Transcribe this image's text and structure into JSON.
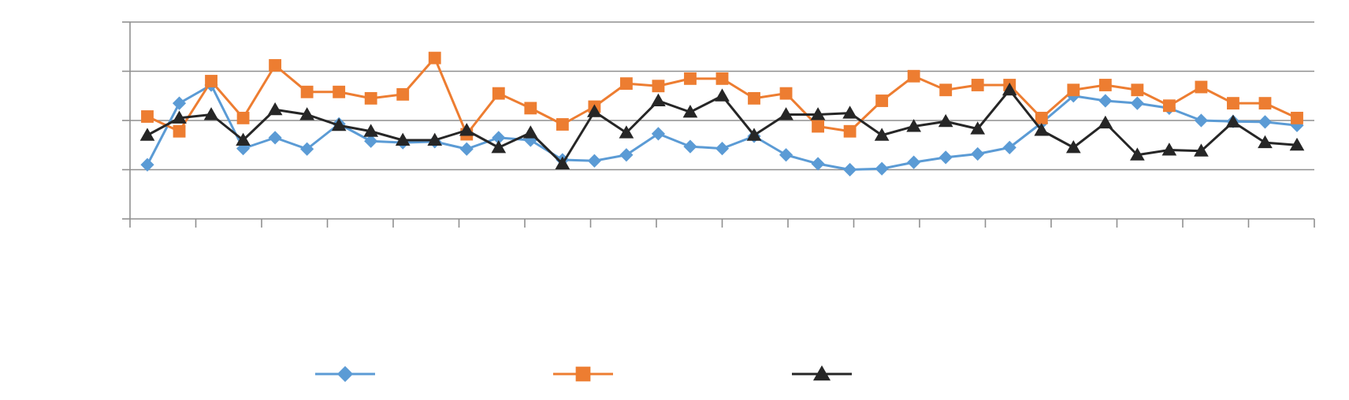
{
  "chart_data": {
    "type": "line",
    "title": "",
    "xlabel": "",
    "ylabel": "",
    "ylim": [
      0,
      4
    ],
    "grid": true,
    "legend": "bottom",
    "x": [
      1,
      2,
      3,
      4,
      5,
      6,
      7,
      8,
      9,
      10,
      11,
      12,
      13,
      14,
      15,
      16,
      17,
      18,
      19,
      20,
      21,
      22,
      23,
      24,
      25,
      26,
      27,
      28,
      29,
      30,
      31,
      32,
      33,
      34,
      35,
      36,
      37
    ],
    "series": [
      {
        "color": "#5B9BD5",
        "marker": "diamond",
        "values": [
          1.1,
          2.35,
          2.72,
          1.43,
          1.65,
          1.42,
          1.93,
          1.58,
          1.55,
          1.57,
          1.42,
          1.65,
          1.6,
          1.2,
          1.18,
          1.3,
          1.73,
          1.47,
          1.43,
          1.68,
          1.3,
          1.12,
          1.0,
          1.02,
          1.15,
          1.25,
          1.32,
          1.45,
          1.95,
          2.5,
          2.4,
          2.35,
          2.25,
          2.0,
          1.98,
          1.97,
          1.9
        ]
      },
      {
        "color": "#ED7D31",
        "marker": "square",
        "values": [
          2.08,
          1.78,
          2.8,
          2.05,
          3.12,
          2.58,
          2.58,
          2.45,
          2.53,
          3.27,
          1.72,
          2.55,
          2.25,
          1.92,
          2.28,
          2.75,
          2.7,
          2.85,
          2.85,
          2.45,
          2.55,
          1.88,
          1.78,
          2.4,
          2.9,
          2.62,
          2.72,
          2.72,
          2.05,
          2.62,
          2.72,
          2.62,
          2.3,
          2.68,
          2.35,
          2.35,
          2.05
        ]
      },
      {
        "color": "#262626",
        "marker": "triangle",
        "values": [
          1.7,
          2.05,
          2.12,
          1.6,
          2.22,
          2.12,
          1.9,
          1.78,
          1.6,
          1.6,
          1.8,
          1.45,
          1.75,
          1.12,
          2.18,
          1.75,
          2.4,
          2.17,
          2.5,
          1.7,
          2.12,
          2.12,
          2.15,
          1.7,
          1.88,
          1.98,
          1.83,
          2.62,
          1.8,
          1.45,
          1.95,
          1.3,
          1.4,
          1.38,
          1.97,
          1.55,
          1.5
        ]
      }
    ]
  }
}
